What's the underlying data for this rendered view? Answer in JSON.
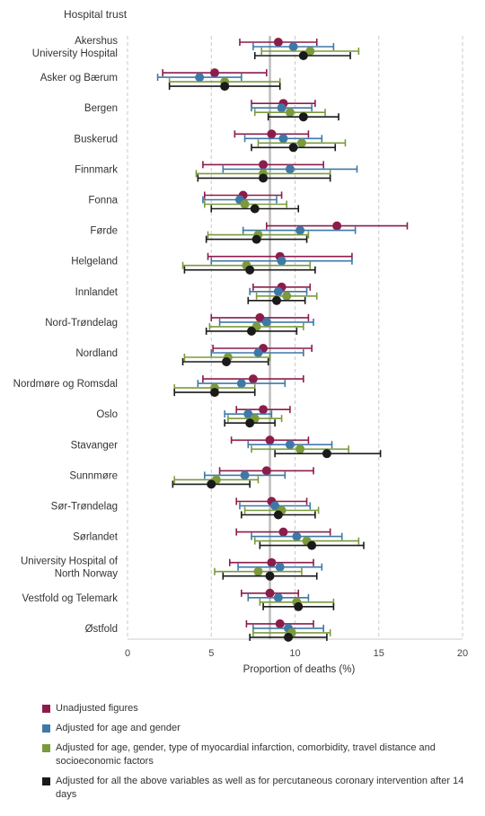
{
  "chart_data": {
    "type": "dot-plot with confidence intervals",
    "header": "Hospital trust",
    "xlabel": "Proportion of deaths (%)",
    "xlim": [
      0,
      20
    ],
    "xticks": [
      0,
      5,
      10,
      15,
      20
    ],
    "reference_line": 8.5,
    "series": [
      {
        "name": "Unadjusted figures",
        "color": "#8c1c4b"
      },
      {
        "name": "Adjusted for age and gender",
        "color": "#3e78a8"
      },
      {
        "name": "Adjusted for age, gender, type of myocardial infarction, comorbidity, travel distance and socioeconomic factors",
        "color": "#7b9a3c"
      },
      {
        "name": "Adjusted for all the above variables as well as for percutaneous coronary intervention after 14 days",
        "color": "#1a1a1a"
      }
    ],
    "trusts": [
      {
        "name": [
          "Akershus",
          "University Hospital"
        ],
        "values": [
          [
            9.0,
            6.7,
            11.3
          ],
          [
            9.9,
            7.5,
            12.3
          ],
          [
            10.9,
            8.0,
            13.8
          ],
          [
            10.5,
            7.6,
            13.3
          ]
        ]
      },
      {
        "name": [
          "Asker og Bærum"
        ],
        "values": [
          [
            5.2,
            2.1,
            8.3
          ],
          [
            4.3,
            1.8,
            6.8
          ],
          [
            5.8,
            2.5,
            9.1
          ],
          [
            5.8,
            2.5,
            9.1
          ]
        ]
      },
      {
        "name": [
          "Bergen"
        ],
        "values": [
          [
            9.3,
            7.4,
            11.2
          ],
          [
            9.2,
            7.4,
            11.0
          ],
          [
            9.7,
            7.6,
            11.8
          ],
          [
            10.5,
            8.4,
            12.6
          ]
        ]
      },
      {
        "name": [
          "Buskerud"
        ],
        "values": [
          [
            8.6,
            6.4,
            10.8
          ],
          [
            9.3,
            7.0,
            11.6
          ],
          [
            10.4,
            7.8,
            13.0
          ],
          [
            9.9,
            7.4,
            12.4
          ]
        ]
      },
      {
        "name": [
          "Finnmark"
        ],
        "values": [
          [
            8.1,
            4.5,
            11.7
          ],
          [
            9.7,
            5.7,
            13.7
          ],
          [
            8.1,
            4.1,
            12.1
          ],
          [
            8.1,
            4.2,
            12.1
          ]
        ]
      },
      {
        "name": [
          "Fonna"
        ],
        "values": [
          [
            6.9,
            4.6,
            9.2
          ],
          [
            6.7,
            4.5,
            8.9
          ],
          [
            7.0,
            4.6,
            9.5
          ],
          [
            7.6,
            5.0,
            10.2
          ]
        ]
      },
      {
        "name": [
          "Førde"
        ],
        "values": [
          [
            12.5,
            8.3,
            16.7
          ],
          [
            10.3,
            6.9,
            13.6
          ],
          [
            7.8,
            4.8,
            10.8
          ],
          [
            7.7,
            4.7,
            10.7
          ]
        ]
      },
      {
        "name": [
          "Helgeland"
        ],
        "values": [
          [
            9.1,
            4.8,
            13.4
          ],
          [
            9.2,
            5.0,
            13.4
          ],
          [
            7.1,
            3.3,
            10.9
          ],
          [
            7.3,
            3.4,
            11.2
          ]
        ]
      },
      {
        "name": [
          "Innlandet"
        ],
        "values": [
          [
            9.2,
            7.5,
            10.9
          ],
          [
            9.0,
            7.3,
            10.7
          ],
          [
            9.5,
            7.7,
            11.3
          ],
          [
            8.9,
            7.2,
            10.6
          ]
        ]
      },
      {
        "name": [
          "Nord-Trøndelag"
        ],
        "values": [
          [
            7.9,
            5.0,
            10.8
          ],
          [
            8.3,
            5.5,
            11.1
          ],
          [
            7.7,
            4.9,
            10.5
          ],
          [
            7.4,
            4.7,
            10.1
          ]
        ]
      },
      {
        "name": [
          "Nordland"
        ],
        "values": [
          [
            8.1,
            5.1,
            11.0
          ],
          [
            7.8,
            5.0,
            10.5
          ],
          [
            6.0,
            3.4,
            8.5
          ],
          [
            5.9,
            3.3,
            8.4
          ]
        ]
      },
      {
        "name": [
          "Nordmøre og Romsdal"
        ],
        "values": [
          [
            7.5,
            4.5,
            10.5
          ],
          [
            6.8,
            4.2,
            9.4
          ],
          [
            5.2,
            2.8,
            7.6
          ],
          [
            5.2,
            2.8,
            7.6
          ]
        ]
      },
      {
        "name": [
          "Oslo"
        ],
        "values": [
          [
            8.1,
            6.5,
            9.7
          ],
          [
            7.2,
            5.8,
            8.6
          ],
          [
            7.6,
            6.0,
            9.2
          ],
          [
            7.3,
            5.8,
            8.8
          ]
        ]
      },
      {
        "name": [
          "Stavanger"
        ],
        "values": [
          [
            8.5,
            6.2,
            10.8
          ],
          [
            9.7,
            7.2,
            12.2
          ],
          [
            10.3,
            7.4,
            13.2
          ],
          [
            11.9,
            8.8,
            15.1
          ]
        ]
      },
      {
        "name": [
          "Sunnmøre"
        ],
        "values": [
          [
            8.3,
            5.5,
            11.1
          ],
          [
            7.0,
            4.6,
            9.4
          ],
          [
            5.3,
            2.8,
            7.8
          ],
          [
            5.0,
            2.7,
            7.3
          ]
        ]
      },
      {
        "name": [
          "Sør-Trøndelag"
        ],
        "values": [
          [
            8.6,
            6.5,
            10.7
          ],
          [
            8.8,
            6.7,
            10.9
          ],
          [
            9.2,
            7.0,
            11.4
          ],
          [
            9.0,
            6.8,
            11.2
          ]
        ]
      },
      {
        "name": [
          "Sørlandet"
        ],
        "values": [
          [
            9.3,
            6.5,
            12.1
          ],
          [
            10.1,
            7.4,
            12.8
          ],
          [
            10.7,
            7.6,
            13.8
          ],
          [
            11.0,
            7.9,
            14.1
          ]
        ]
      },
      {
        "name": [
          "University Hospital of",
          "North Norway"
        ],
        "values": [
          [
            8.6,
            6.1,
            11.1
          ],
          [
            9.1,
            6.6,
            11.6
          ],
          [
            7.8,
            5.2,
            10.4
          ],
          [
            8.5,
            5.7,
            11.3
          ]
        ]
      },
      {
        "name": [
          "Vestfold og Telemark"
        ],
        "values": [
          [
            8.5,
            6.8,
            10.2
          ],
          [
            9.0,
            7.2,
            10.8
          ],
          [
            10.1,
            7.9,
            12.3
          ],
          [
            10.2,
            8.1,
            12.3
          ]
        ]
      },
      {
        "name": [
          "Østfold"
        ],
        "values": [
          [
            9.1,
            7.1,
            11.1
          ],
          [
            9.6,
            7.5,
            11.7
          ],
          [
            9.8,
            7.5,
            12.1
          ],
          [
            9.6,
            7.3,
            11.9
          ]
        ]
      }
    ]
  }
}
